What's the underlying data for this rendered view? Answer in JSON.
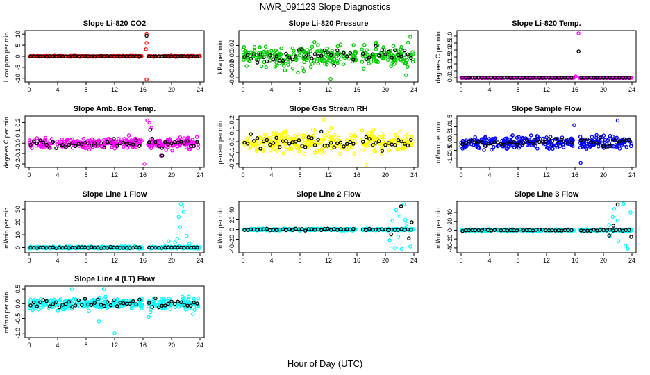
{
  "figure": {
    "title": "NWR_091123  Slope Diagnostics",
    "xlabel": "Hour of Day (UTC)"
  },
  "chart_data": [
    {
      "type": "scatter",
      "title": "Slope Li-820 CO2",
      "ylabel": "Licor ppm per min.",
      "xlim": [
        0,
        24
      ],
      "ylim": [
        -11,
        11
      ],
      "xticks": [
        0,
        4,
        8,
        12,
        16,
        20,
        24
      ],
      "yticks": [
        -10,
        -5,
        0,
        5,
        10
      ],
      "ytick_labels": [
        "-10",
        "-5",
        "0",
        "5",
        "10"
      ],
      "color": "#ff0000",
      "noise": 0.15,
      "n": 300,
      "black_noise": 0.1,
      "outliers": [
        [
          16.5,
          10.2
        ],
        [
          16.5,
          6
        ],
        [
          16.5,
          -10.5
        ],
        [
          16.4,
          3.2
        ]
      ],
      "black_outliers": [
        [
          16.5,
          9.3
        ]
      ]
    },
    {
      "type": "scatter",
      "title": "Slope Li-820 Pressure",
      "ylabel": "kPa per min.",
      "xlim": [
        0,
        24
      ],
      "ylim": [
        -0.045,
        0.045
      ],
      "xticks": [
        0,
        4,
        8,
        12,
        16,
        20,
        24
      ],
      "yticks": [
        -0.04,
        -0.02,
        0,
        0.02
      ],
      "ytick_labels": [
        "-0.04",
        "-0.02",
        "0.00",
        "0.02"
      ],
      "color": "#00cc00",
      "noise": 0.013,
      "n": 300,
      "black_noise": 0.01,
      "outliers": [
        [
          12.3,
          -0.042
        ],
        [
          22.9,
          -0.035
        ],
        [
          7.7,
          -0.03
        ],
        [
          23.5,
          0.036
        ]
      ],
      "black_outliers": []
    },
    {
      "type": "scatter",
      "title": "Slope Li-820 Temp.",
      "ylabel": "degrees C per min.",
      "xlim": [
        0,
        24
      ],
      "ylim": [
        -0.2,
        3.3
      ],
      "xticks": [
        0,
        4,
        8,
        12,
        16,
        20,
        24
      ],
      "yticks": [
        0,
        0.5,
        1,
        1.5,
        2,
        2.5,
        3
      ],
      "ytick_labels": [
        "0.0",
        "0.5",
        "1.0",
        "1.5",
        "2.0",
        "2.5",
        "3.0"
      ],
      "color": "#ff00ff",
      "noise": 0.01,
      "n": 250,
      "black_noise": 0.005,
      "outliers": [
        [
          16.5,
          3.2
        ],
        [
          16.1,
          0.1
        ]
      ],
      "black_outliers": [
        [
          16.5,
          1.9
        ]
      ]
    },
    {
      "type": "scatter",
      "title": "Slope Amb. Box Temp.",
      "ylabel": "degrees C per min.",
      "xlim": [
        0,
        24
      ],
      "ylim": [
        -0.22,
        0.25
      ],
      "xticks": [
        0,
        4,
        8,
        12,
        16,
        20,
        24
      ],
      "yticks": [
        -0.2,
        -0.1,
        0,
        0.1,
        0.2
      ],
      "ytick_labels": [
        "-0.2",
        "-0.1",
        "0.0",
        "0.1",
        "0.2"
      ],
      "color": "#ff00ff",
      "noise": 0.035,
      "n": 320,
      "black_noise": 0.03,
      "outliers": [
        [
          16.6,
          0.22
        ],
        [
          16.9,
          0.2
        ],
        [
          17.2,
          0.15
        ],
        [
          16.2,
          -0.2
        ],
        [
          18.5,
          -0.12
        ]
      ],
      "black_outliers": [
        [
          17,
          0.13
        ],
        [
          18.7,
          -0.12
        ]
      ]
    },
    {
      "type": "scatter",
      "title": "Slope Gas Stream RH",
      "ylabel": "percent per min.",
      "xlim": [
        0,
        24
      ],
      "ylim": [
        -0.22,
        0.22
      ],
      "xticks": [
        0,
        4,
        8,
        12,
        16,
        20,
        24
      ],
      "yticks": [
        -0.2,
        -0.1,
        0,
        0.1,
        0.2
      ],
      "ytick_labels": [
        "-0.2",
        "-0.1",
        "0.0",
        "0.1",
        "0.2"
      ],
      "color": "#ffff00",
      "noise": 0.065,
      "n": 320,
      "black_noise": 0.05,
      "outliers": [
        [
          17.3,
          -0.21
        ],
        [
          11.4,
          0.2
        ]
      ],
      "black_outliers": []
    },
    {
      "type": "scatter",
      "title": "Slope Sample Flow",
      "ylabel": "ml/min per min.",
      "xlim": [
        0,
        24
      ],
      "ylim": [
        -1.5,
        1.6
      ],
      "xticks": [
        0,
        4,
        8,
        12,
        16,
        20,
        24
      ],
      "yticks": [
        -1,
        -0.5,
        0,
        0.5,
        1,
        1.5
      ],
      "ytick_labels": [
        "-1.0",
        "-0.5",
        "0.0",
        "0.5",
        "1.0",
        "1.5"
      ],
      "color": "#0000ff",
      "noise": 0.3,
      "n": 330,
      "black_noise": 0.2,
      "outliers": [
        [
          16.8,
          -1.3
        ],
        [
          22,
          1.4
        ],
        [
          15.9,
          1.1
        ]
      ],
      "black_outliers": []
    },
    {
      "type": "scatter",
      "title": "Slope Line 1 Flow",
      "ylabel": "ml/min per min.",
      "xlim": [
        0,
        24
      ],
      "ylim": [
        -3,
        35
      ],
      "xticks": [
        0,
        4,
        8,
        12,
        16,
        20,
        24
      ],
      "yticks": [
        0,
        10,
        20,
        30
      ],
      "ytick_labels": [
        "0",
        "10",
        "20",
        "30"
      ],
      "color": "#00ffff",
      "noise": 0.6,
      "n": 300,
      "black_noise": 0.3,
      "outliers": [
        [
          21.3,
          34
        ],
        [
          21.5,
          32
        ],
        [
          21,
          24
        ],
        [
          21.2,
          16
        ],
        [
          20.8,
          7
        ],
        [
          22.1,
          9
        ],
        [
          22.5,
          3
        ],
        [
          20.5,
          4
        ],
        [
          21.7,
          28
        ],
        [
          19.6,
          5
        ]
      ],
      "black_outliers": []
    },
    {
      "type": "scatter",
      "title": "Slope Line 2 Flow",
      "ylabel": "ml/min per min.",
      "xlim": [
        0,
        24
      ],
      "ylim": [
        -45,
        55
      ],
      "xticks": [
        0,
        4,
        8,
        12,
        16,
        20,
        24
      ],
      "yticks": [
        -40,
        -20,
        0,
        20,
        40
      ],
      "ytick_labels": [
        "-40",
        "-20",
        "0",
        "20",
        "40"
      ],
      "color": "#00ffff",
      "noise": 1.5,
      "n": 300,
      "black_noise": 1.2,
      "outliers": [
        [
          22.6,
          52
        ],
        [
          21.5,
          40
        ],
        [
          22,
          28
        ],
        [
          21,
          18
        ],
        [
          22.8,
          20
        ],
        [
          21.3,
          -38
        ],
        [
          22.3,
          -40
        ],
        [
          23.5,
          -35
        ],
        [
          20.6,
          -22
        ],
        [
          23,
          12
        ],
        [
          21.8,
          -15
        ]
      ],
      "black_outliers": [
        [
          22.2,
          48
        ],
        [
          20.8,
          -10
        ],
        [
          23.7,
          15
        ],
        [
          23.3,
          -18
        ]
      ]
    },
    {
      "type": "scatter",
      "title": "Slope Line 3 Flow",
      "ylabel": "ml/min per min.",
      "xlim": [
        0,
        24
      ],
      "ylim": [
        -48,
        62
      ],
      "xticks": [
        0,
        4,
        8,
        12,
        16,
        20,
        24
      ],
      "yticks": [
        -40,
        -20,
        0,
        20,
        40
      ],
      "ytick_labels": [
        "-40",
        "-20",
        "0",
        "20",
        "40"
      ],
      "color": "#00ffff",
      "noise": 1.5,
      "n": 300,
      "black_noise": 1.2,
      "outliers": [
        [
          22.4,
          58
        ],
        [
          22.8,
          60
        ],
        [
          21.5,
          48
        ],
        [
          21.3,
          30
        ],
        [
          22,
          22
        ],
        [
          23.8,
          40
        ],
        [
          20.8,
          12
        ],
        [
          22.1,
          -25
        ],
        [
          23.4,
          -42
        ],
        [
          21,
          -12
        ],
        [
          23.1,
          -35
        ]
      ],
      "black_outliers": [
        [
          22,
          58
        ],
        [
          20.8,
          -12
        ],
        [
          23.9,
          -15
        ],
        [
          21.4,
          10
        ]
      ]
    },
    {
      "type": "scatter",
      "title": "Slope Line 4 (LT) Flow",
      "ylabel": "ml/min per min.",
      "xlim": [
        0,
        24
      ],
      "ylim": [
        -1.1,
        0.55
      ],
      "xticks": [
        0,
        4,
        8,
        12,
        16,
        20,
        24
      ],
      "yticks": [
        -1,
        -0.5,
        0,
        0.5
      ],
      "ytick_labels": [
        "-1.0",
        "-0.5",
        "0.0",
        "0.5"
      ],
      "color": "#00ffff",
      "noise": 0.13,
      "n": 330,
      "black_noise": 0.1,
      "outliers": [
        [
          12,
          -1
        ],
        [
          9.8,
          -0.6
        ],
        [
          16.8,
          -0.45
        ],
        [
          6,
          0.5
        ],
        [
          23,
          -0.35
        ],
        [
          10.5,
          0.5
        ]
      ],
      "black_outliers": []
    }
  ]
}
